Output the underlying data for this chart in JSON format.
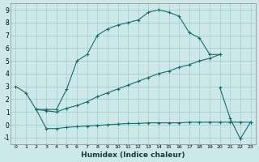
{
  "xlabel": "Humidex (Indice chaleur)",
  "bg_color": "#cce8e8",
  "grid_color": "#aad0d0",
  "line_color": "#1a6b6b",
  "xlim": [
    -0.5,
    23.5
  ],
  "ylim": [
    -1.5,
    9.5
  ],
  "xticks": [
    0,
    1,
    2,
    3,
    4,
    5,
    6,
    7,
    8,
    9,
    10,
    11,
    12,
    13,
    14,
    15,
    16,
    17,
    18,
    19,
    20,
    21,
    22,
    23
  ],
  "yticks": [
    -1,
    0,
    1,
    2,
    3,
    4,
    5,
    6,
    7,
    8,
    9
  ],
  "series": [
    {
      "x": [
        0,
        1,
        2,
        3,
        4,
        5,
        6,
        7,
        8,
        9,
        10,
        11,
        12,
        13,
        14,
        15,
        16,
        17,
        18,
        19,
        20
      ],
      "y": [
        3.0,
        2.5,
        1.2,
        1.2,
        1.2,
        2.8,
        5.0,
        5.5,
        7.0,
        7.5,
        7.8,
        8.0,
        8.2,
        8.8,
        9.0,
        8.8,
        8.5,
        7.2,
        6.8,
        5.5,
        5.5
      ]
    },
    {
      "x": [
        2,
        3,
        4,
        5,
        6,
        7,
        8,
        9,
        10,
        11,
        12,
        13,
        14,
        15,
        16,
        17,
        18,
        19,
        20
      ],
      "y": [
        1.2,
        1.1,
        1.0,
        1.3,
        1.5,
        1.8,
        2.2,
        2.5,
        2.8,
        3.1,
        3.4,
        3.7,
        4.0,
        4.2,
        4.5,
        4.7,
        5.0,
        5.2,
        5.5
      ]
    },
    {
      "x": [
        2,
        3,
        4,
        5,
        6,
        7,
        8,
        9,
        10,
        11,
        12,
        13,
        14,
        15,
        16,
        17,
        18,
        19,
        20,
        21,
        22,
        23
      ],
      "y": [
        1.2,
        -0.3,
        -0.3,
        -0.2,
        -0.15,
        -0.1,
        -0.05,
        0.0,
        0.05,
        0.1,
        0.1,
        0.15,
        0.15,
        0.15,
        0.15,
        0.2,
        0.2,
        0.2,
        0.2,
        0.2,
        0.2,
        0.2
      ]
    },
    {
      "x": [
        20,
        21,
        22,
        23
      ],
      "y": [
        2.9,
        0.5,
        -1.1,
        0.2
      ]
    }
  ]
}
